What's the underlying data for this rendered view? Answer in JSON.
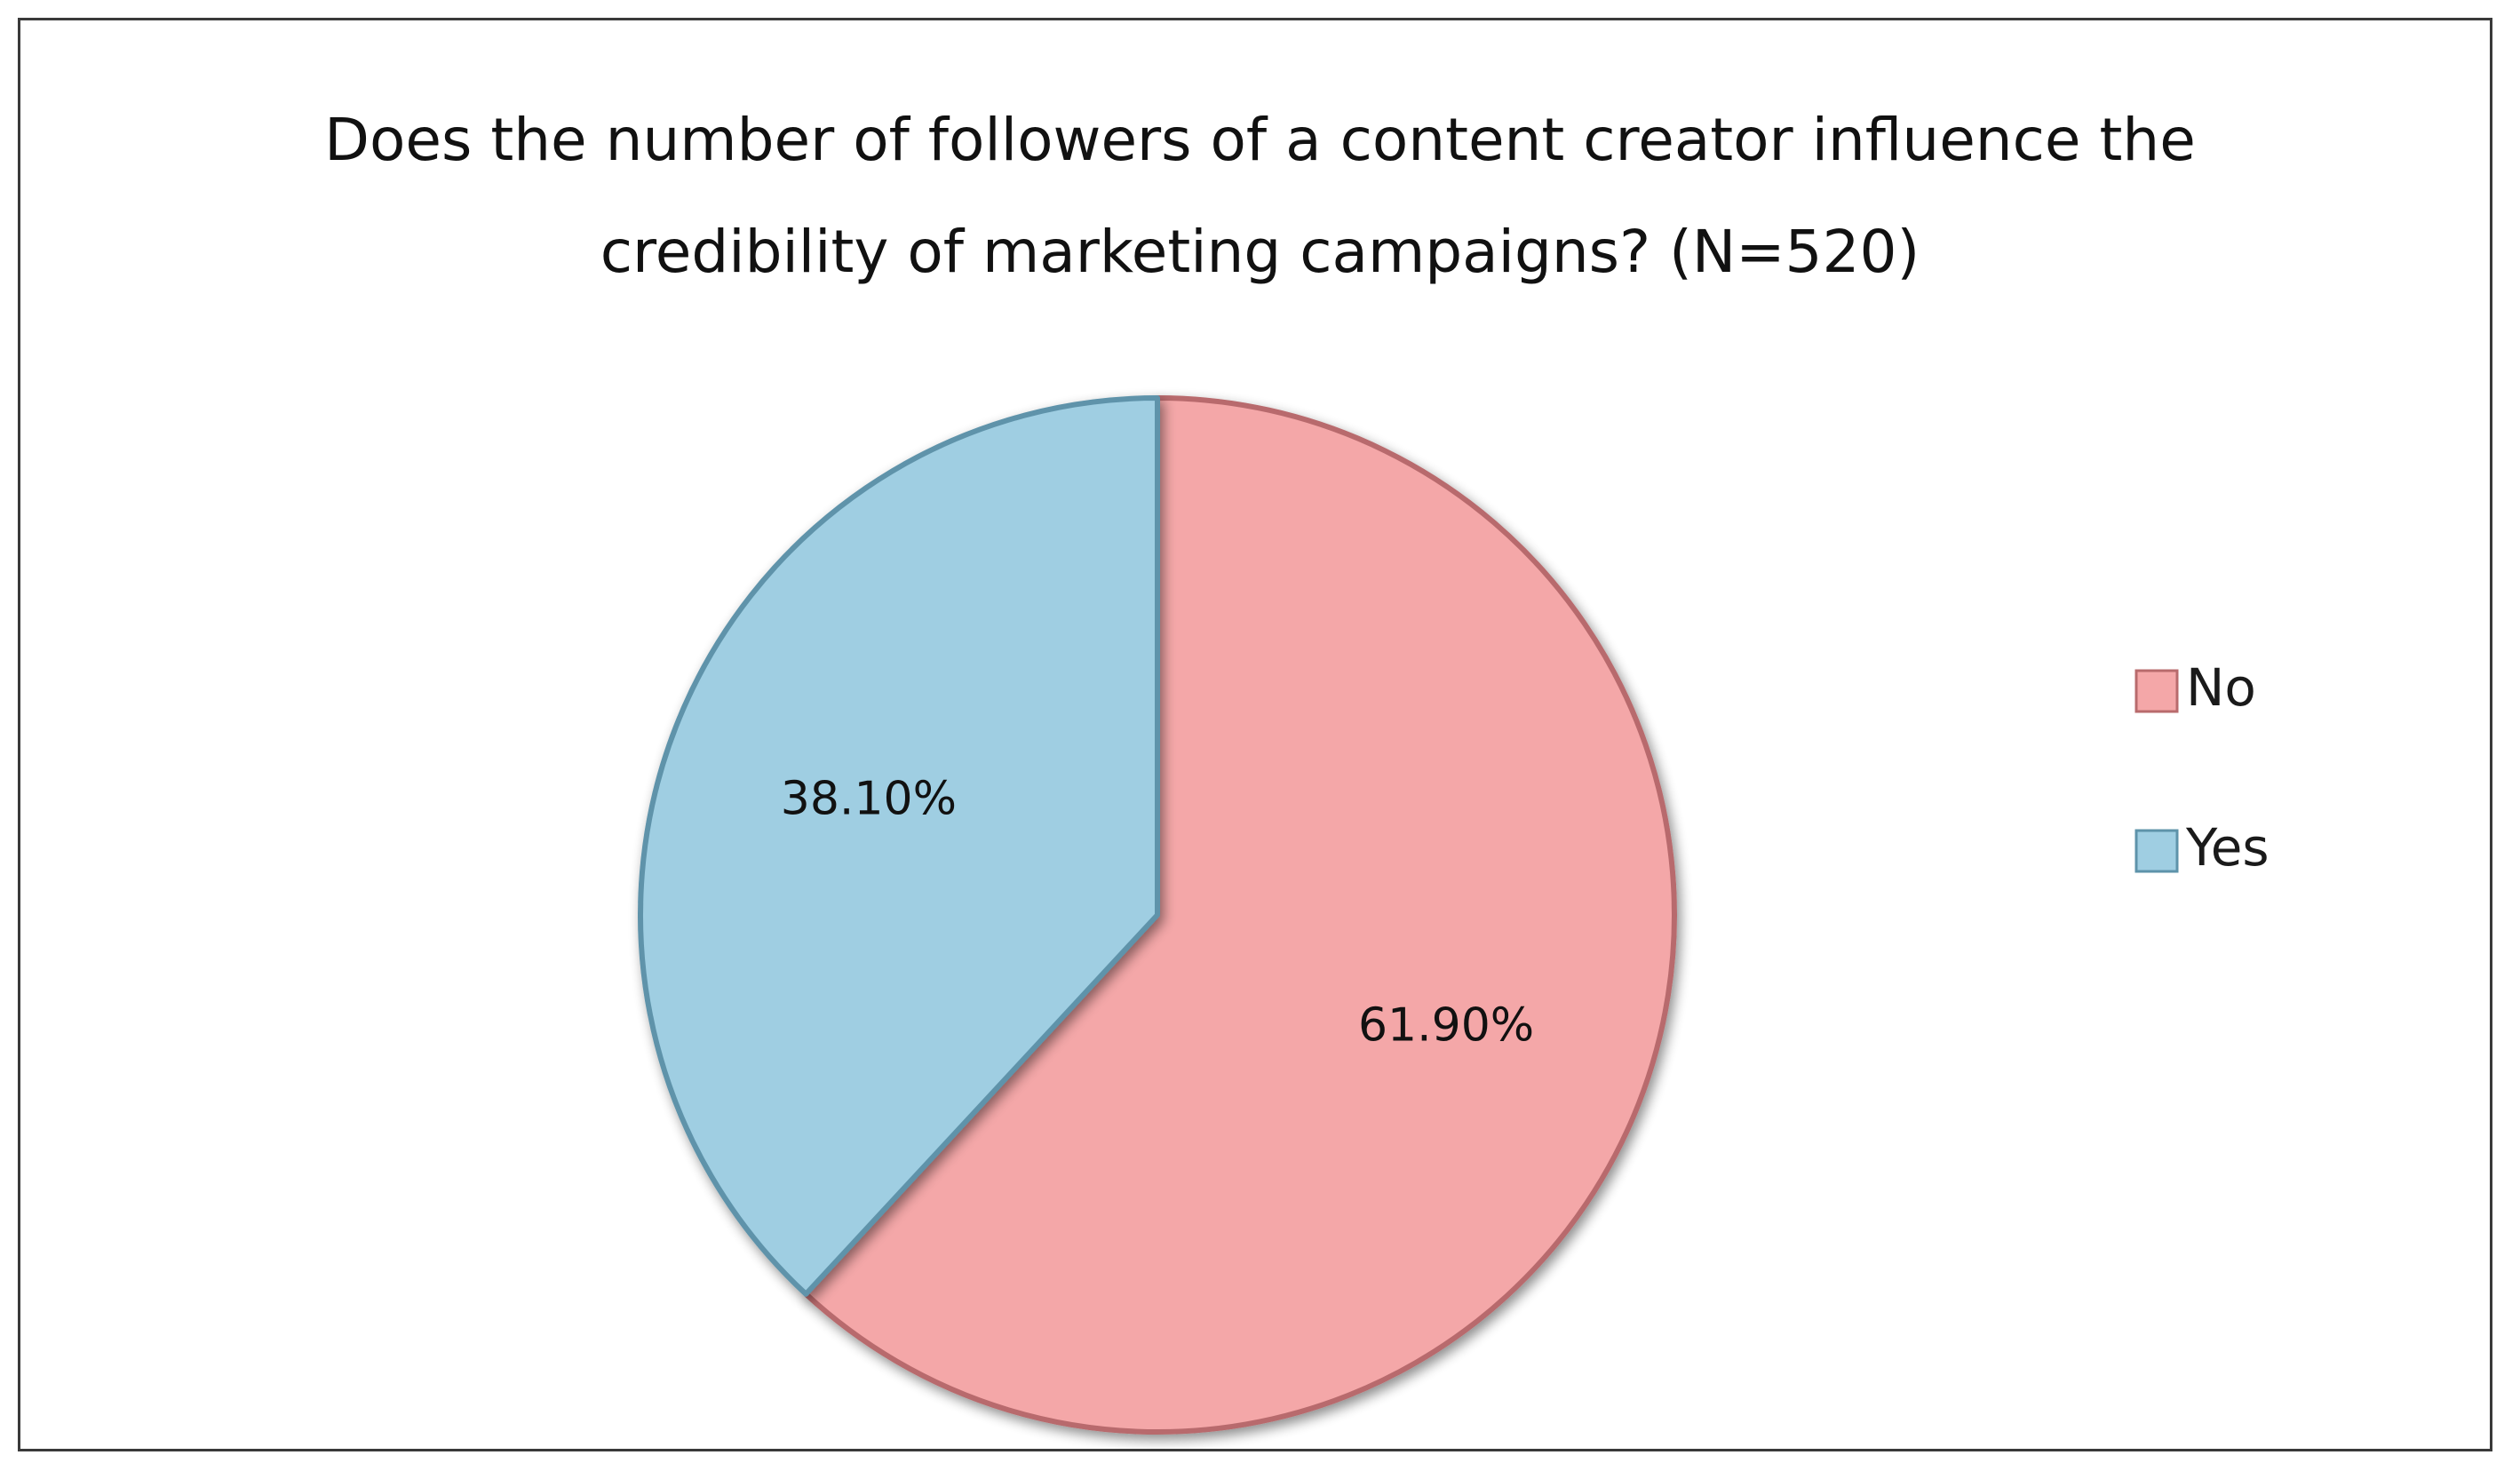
{
  "title": {
    "line1": "Does the number of followers of a content creator influence the",
    "line2": "credibility of marketing campaigns?",
    "suffix": " (N=520)"
  },
  "colors": {
    "no": "#f4a7a8",
    "yes": "#9fcee2"
  },
  "chart_data": {
    "type": "pie",
    "categories": [
      "No",
      "Yes"
    ],
    "values": [
      61.9,
      38.1
    ],
    "data_labels": [
      "61.90%",
      "38.10%"
    ],
    "title": "Does the number of followers of a content creator influence the credibility of marketing campaigns? (N=520)",
    "legend_position": "right",
    "start_angle": "12 o'clock",
    "direction": "clockwise"
  },
  "legend": [
    {
      "label": "No",
      "color_key": "no"
    },
    {
      "label": "Yes",
      "color_key": "yes"
    }
  ]
}
